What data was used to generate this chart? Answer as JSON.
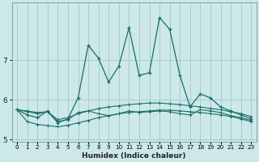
{
  "xlabel": "Humidex (Indice chaleur)",
  "ylabel": "",
  "bg_color": "#cce8e8",
  "grid_color": "#aacccc",
  "line_color": "#1a6e6a",
  "x_values": [
    0,
    1,
    2,
    3,
    4,
    5,
    6,
    7,
    8,
    9,
    10,
    11,
    12,
    13,
    14,
    15,
    16,
    17,
    18,
    19,
    20,
    21,
    22,
    23
  ],
  "series": [
    [
      5.75,
      5.62,
      5.55,
      5.72,
      5.42,
      5.52,
      6.05,
      7.38,
      7.05,
      6.45,
      6.85,
      7.82,
      6.62,
      6.68,
      8.08,
      7.78,
      6.62,
      5.82,
      6.15,
      6.05,
      5.82,
      5.72,
      5.62,
      5.52
    ],
    [
      5.75,
      5.72,
      5.68,
      5.7,
      5.5,
      5.55,
      5.65,
      5.72,
      5.78,
      5.82,
      5.85,
      5.88,
      5.9,
      5.92,
      5.92,
      5.9,
      5.88,
      5.85,
      5.82,
      5.78,
      5.75,
      5.7,
      5.65,
      5.58
    ],
    [
      5.75,
      5.45,
      5.38,
      5.35,
      5.32,
      5.36,
      5.42,
      5.48,
      5.55,
      5.6,
      5.65,
      5.68,
      5.7,
      5.72,
      5.74,
      5.74,
      5.72,
      5.7,
      5.68,
      5.65,
      5.62,
      5.58,
      5.52,
      5.45
    ],
    [
      5.75,
      5.7,
      5.65,
      5.7,
      5.45,
      5.5,
      5.68,
      5.72,
      5.65,
      5.6,
      5.65,
      5.72,
      5.68,
      5.7,
      5.72,
      5.7,
      5.65,
      5.62,
      5.75,
      5.72,
      5.68,
      5.6,
      5.55,
      5.48
    ]
  ],
  "ylim": [
    4.95,
    8.45
  ],
  "yticks": [
    5,
    6,
    7
  ],
  "xlim": [
    -0.5,
    23.5
  ],
  "xtick_labels": [
    "0",
    "1",
    "2",
    "3",
    "4",
    "5",
    "6",
    "7",
    "8",
    "9",
    "10",
    "11",
    "12",
    "13",
    "14",
    "15",
    "16",
    "17",
    "18",
    "19",
    "20",
    "21",
    "22",
    "23"
  ]
}
